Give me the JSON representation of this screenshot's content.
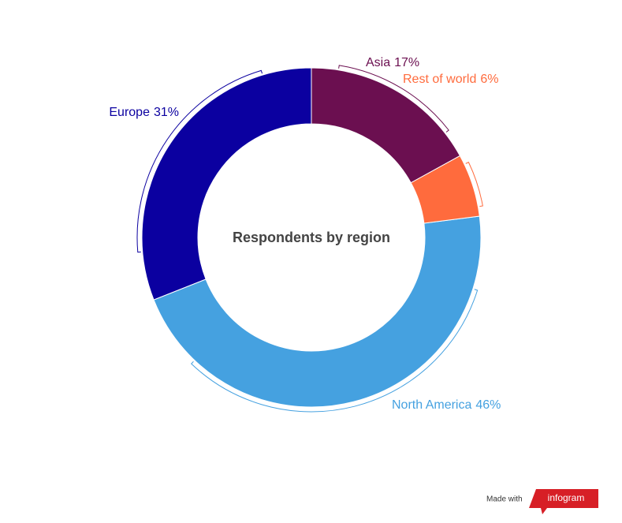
{
  "chart_data": {
    "type": "donut",
    "title": "Respondents by region",
    "categories": [
      "Asia",
      "Rest of world",
      "North America",
      "Europe"
    ],
    "values": [
      17,
      6,
      46,
      31
    ],
    "value_labels": [
      "17%",
      "6%",
      "46%",
      "31%"
    ],
    "colors": [
      "#6b0f50",
      "#ff6b3d",
      "#45a1e0",
      "#0b00a0"
    ]
  },
  "footer": {
    "made_with": "Made with",
    "brand": "infogram"
  }
}
